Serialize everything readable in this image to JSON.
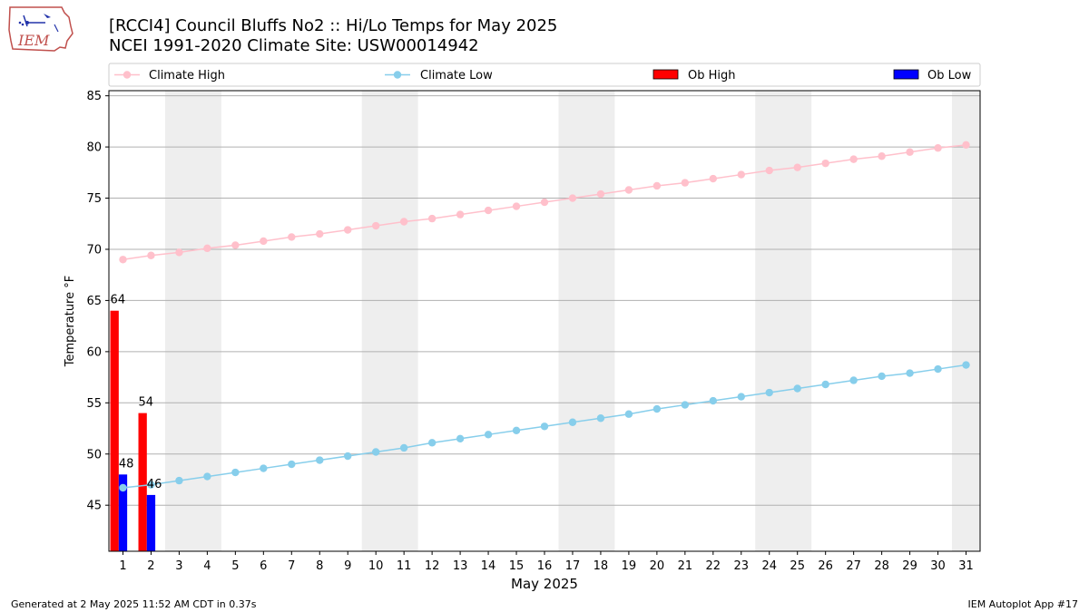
{
  "header": {
    "title_line1": "[RCCI4] Council Bluffs No2 :: Hi/Lo Temps for May 2025",
    "title_line2": "NCEI 1991-2020 Climate Site: USW00014942"
  },
  "logo": {
    "text": "IEM"
  },
  "footer": {
    "generated": "Generated at 2 May 2025 11:52 AM CDT in 0.37s",
    "app": "IEM Autoplot App #17"
  },
  "colors": {
    "climate_high": "#ffc0cb",
    "climate_low": "#87ceeb",
    "ob_high": "#ff0000",
    "ob_low": "#0000ff",
    "weekend_shade": "#eeeeee",
    "grid": "#b0b0b0"
  },
  "chart_data": {
    "type": "bar",
    "xlabel": "May 2025",
    "ylabel": "Temperature °F",
    "xlim": [
      0.5,
      31.5
    ],
    "ylim": [
      40.5,
      85.5
    ],
    "yticks": [
      45,
      50,
      55,
      60,
      65,
      70,
      75,
      80,
      85
    ],
    "x": [
      1,
      2,
      3,
      4,
      5,
      6,
      7,
      8,
      9,
      10,
      11,
      12,
      13,
      14,
      15,
      16,
      17,
      18,
      19,
      20,
      21,
      22,
      23,
      24,
      25,
      26,
      27,
      28,
      29,
      30,
      31
    ],
    "grid": "horizontal",
    "legend_placement": "top",
    "weekend_shading": [
      [
        2.5,
        4.5
      ],
      [
        9.5,
        11.5
      ],
      [
        16.5,
        18.5
      ],
      [
        23.5,
        25.5
      ],
      [
        30.5,
        31.5
      ]
    ],
    "series": [
      {
        "name": "Climate High",
        "type": "line",
        "values": [
          69.0,
          69.4,
          69.7,
          70.1,
          70.4,
          70.8,
          71.2,
          71.5,
          71.9,
          72.3,
          72.7,
          73.0,
          73.4,
          73.8,
          74.2,
          74.6,
          75.0,
          75.4,
          75.8,
          76.2,
          76.5,
          76.9,
          77.3,
          77.7,
          78.0,
          78.4,
          78.8,
          79.1,
          79.5,
          79.9,
          80.2
        ]
      },
      {
        "name": "Climate Low",
        "type": "line",
        "values": [
          46.7,
          47.0,
          47.4,
          47.8,
          48.2,
          48.6,
          49.0,
          49.4,
          49.8,
          50.2,
          50.6,
          51.1,
          51.5,
          51.9,
          52.3,
          52.7,
          53.1,
          53.5,
          53.9,
          54.4,
          54.8,
          55.2,
          55.6,
          56.0,
          56.4,
          56.8,
          57.2,
          57.6,
          57.9,
          58.3,
          58.7
        ]
      },
      {
        "name": "Ob High",
        "type": "bar",
        "x": [
          1,
          2
        ],
        "values": [
          64,
          54
        ],
        "labels": [
          "64",
          "54"
        ]
      },
      {
        "name": "Ob Low",
        "type": "bar",
        "x": [
          1,
          2
        ],
        "values": [
          48,
          46
        ],
        "labels": [
          "48",
          "46"
        ]
      }
    ]
  }
}
